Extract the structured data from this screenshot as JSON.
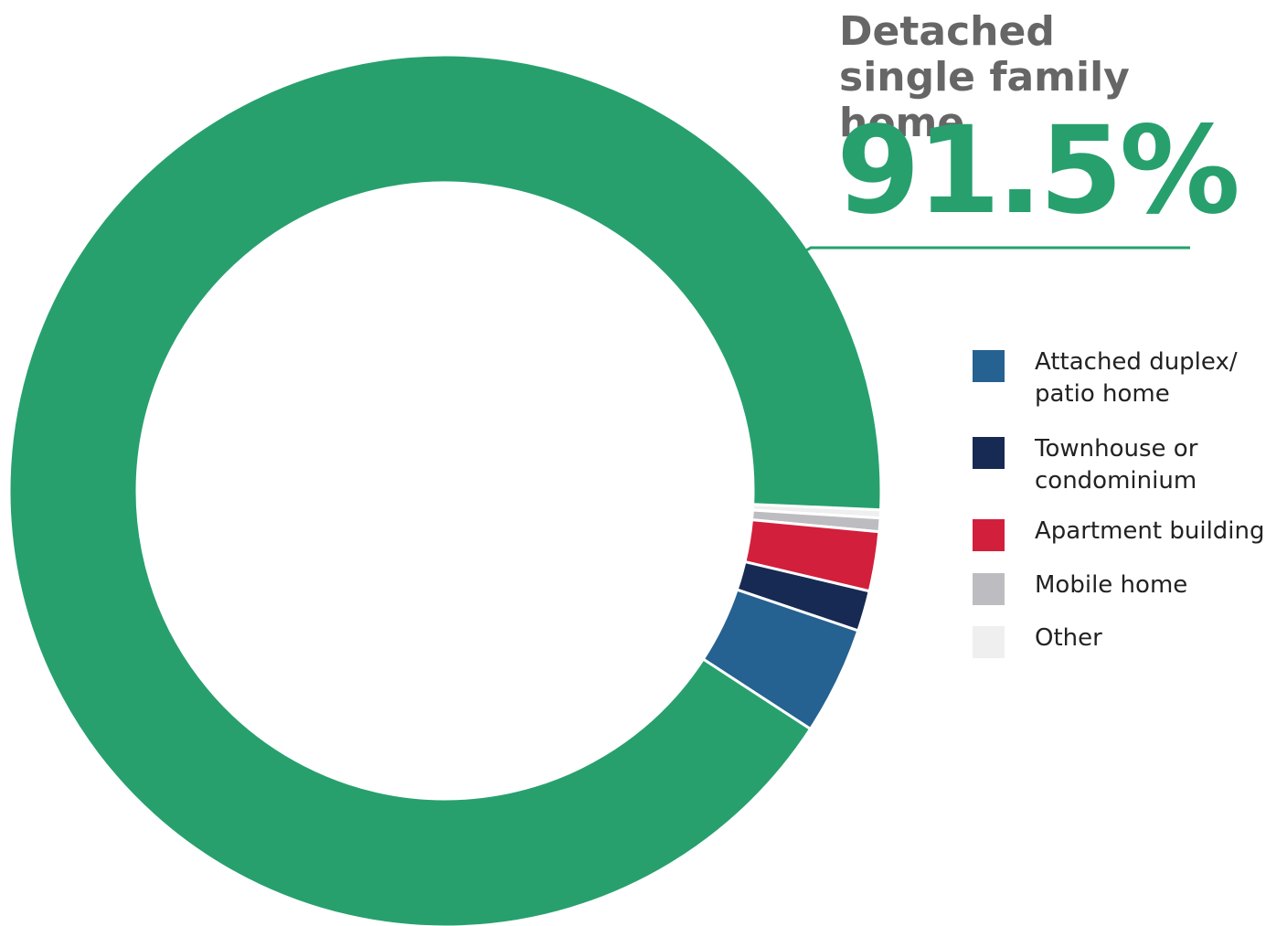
{
  "chart_data": {
    "type": "donut",
    "categories": [
      "Detached single family home",
      "Attached duplex/ patio home",
      "Townhouse or condominium",
      "Apartment building",
      "Mobile home",
      "Other"
    ],
    "values": [
      91.5,
      4.0,
      1.5,
      2.2,
      0.5,
      0.3
    ],
    "value_labels": [
      "91.5%",
      null,
      null,
      null,
      null,
      null
    ],
    "colors": [
      "#27a06e",
      "#256191",
      "#172a53",
      "#d21f3c",
      "#bdbdc1",
      "#efefef"
    ],
    "legend": "right"
  }
}
